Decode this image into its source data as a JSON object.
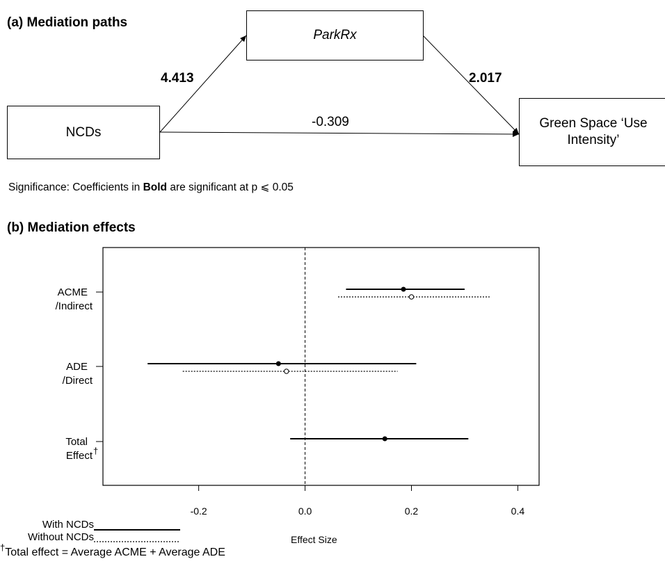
{
  "panel_a": {
    "heading": "(a) Mediation paths",
    "nodes": {
      "mediator": "ParkRx",
      "exposure": "NCDs",
      "outcome_line1": "Green Space ‘Use",
      "outcome_line2": "Intensity’"
    },
    "coefficients": {
      "a_path": "4.413",
      "b_path": "2.017",
      "direct": "-0.309"
    },
    "significance_note": {
      "prefix": "Significance: Coefficients in ",
      "bold_word": "Bold",
      "suffix": "  are significant at p ⩽ 0.05"
    }
  },
  "panel_b": {
    "heading": "(b) Mediation effects"
  },
  "chart_data": {
    "type": "forest",
    "title": "(b) Mediation effects",
    "xlabel": "Effect Size",
    "xlim": [
      -0.38,
      0.44
    ],
    "xticks": [
      -0.2,
      0.0,
      0.2,
      0.4
    ],
    "xtick_labels": [
      "-0.2",
      "0.0",
      "0.2",
      "0.4"
    ],
    "reference_line": 0.0,
    "categories": [
      {
        "line1": "ACME",
        "line2": "/Indirect"
      },
      {
        "line1": "ADE",
        "line2": "/Direct"
      },
      {
        "line1": "Total",
        "line2": "Effect",
        "dagger": "†"
      }
    ],
    "series": [
      {
        "name": "With NCDs",
        "style": "solid",
        "marker": "filled",
        "points": [
          {
            "category": 0,
            "estimate": 0.185,
            "ci_low": 0.077,
            "ci_high": 0.3
          },
          {
            "category": 1,
            "estimate": -0.05,
            "ci_low": -0.296,
            "ci_high": 0.209
          },
          {
            "category": 2,
            "estimate": 0.15,
            "ci_low": -0.028,
            "ci_high": 0.307
          }
        ]
      },
      {
        "name": "Without NCDs",
        "style": "dotted",
        "marker": "open",
        "points": [
          {
            "category": 0,
            "estimate": 0.2,
            "ci_low": 0.062,
            "ci_high": 0.347
          },
          {
            "category": 1,
            "estimate": -0.035,
            "ci_low": -0.23,
            "ci_high": 0.174
          }
        ]
      }
    ],
    "legend": {
      "placement": "bottom-left",
      "items": [
        "With NCDs",
        "Without NCDs"
      ]
    },
    "footnote": {
      "dagger": "†",
      "text": "Total effect = Average ACME + Average ADE"
    }
  }
}
